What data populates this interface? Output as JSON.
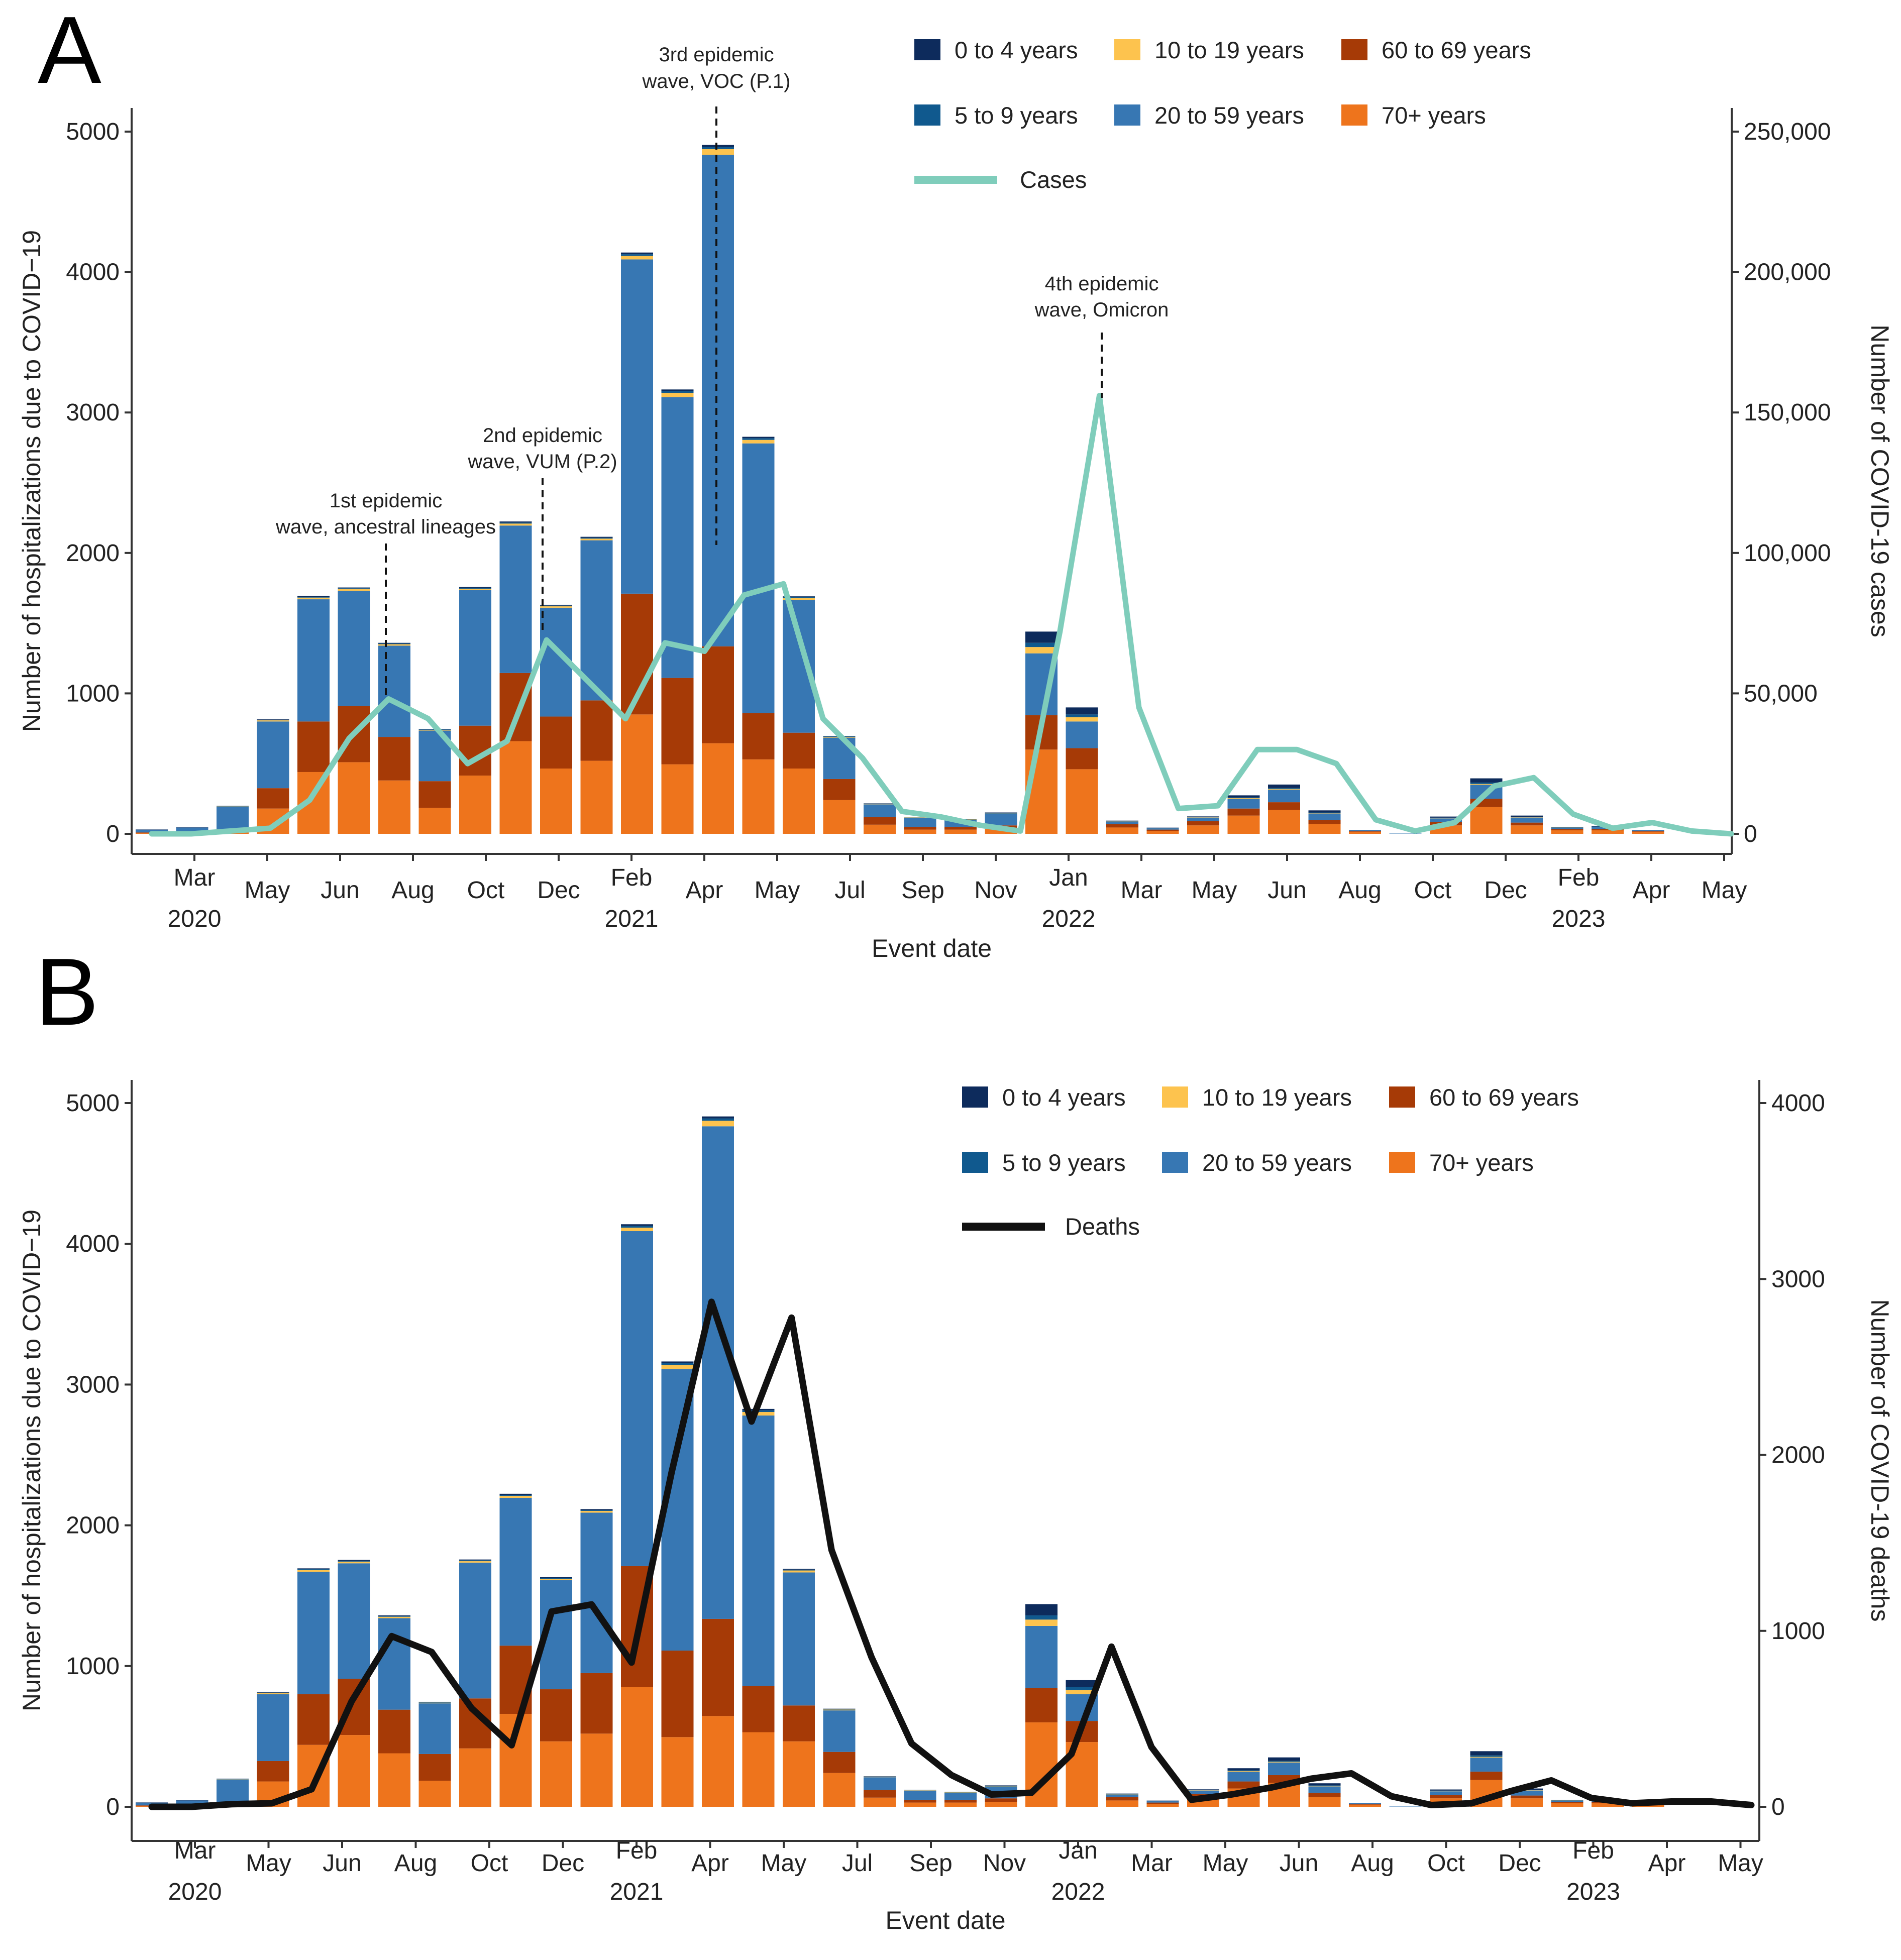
{
  "chart_data": [
    {
      "panel_label": "A",
      "type": "bar",
      "stacked": true,
      "xlabel": "Event date",
      "ylabel": "Number of hospitalizations due to COVID−19",
      "y2label": "Number of COVID-19 cases",
      "ylim": [
        0,
        5000
      ],
      "y2lim": [
        0,
        250000
      ],
      "y_ticks": [
        "0",
        "1000",
        "2000",
        "3000",
        "4000",
        "5000"
      ],
      "y2_ticks": [
        "0",
        "50,000",
        "100,000",
        "150,000",
        "200,000",
        "250,000"
      ],
      "x_tick_labels": [
        {
          "month": "Mar",
          "year": "2020"
        },
        {
          "month": "May",
          "year": ""
        },
        {
          "month": "Jun",
          "year": ""
        },
        {
          "month": "Aug",
          "year": ""
        },
        {
          "month": "Oct",
          "year": ""
        },
        {
          "month": "Dec",
          "year": ""
        },
        {
          "month": "Feb",
          "year": "2021"
        },
        {
          "month": "Apr",
          "year": ""
        },
        {
          "month": "May",
          "year": ""
        },
        {
          "month": "Jul",
          "year": ""
        },
        {
          "month": "Sep",
          "year": ""
        },
        {
          "month": "Nov",
          "year": ""
        },
        {
          "month": "Jan",
          "year": "2022"
        },
        {
          "month": "Mar",
          "year": ""
        },
        {
          "month": "May",
          "year": ""
        },
        {
          "month": "Jun",
          "year": ""
        },
        {
          "month": "Aug",
          "year": ""
        },
        {
          "month": "Oct",
          "year": ""
        },
        {
          "month": "Dec",
          "year": ""
        },
        {
          "month": "Feb",
          "year": "2023"
        },
        {
          "month": "Apr",
          "year": ""
        },
        {
          "month": "May",
          "year": ""
        }
      ],
      "legend": [
        {
          "label": "0 to 4 years",
          "color": "#0d2b5c"
        },
        {
          "label": "10 to 19 years",
          "color": "#fdc34e"
        },
        {
          "label": "60 to 69 years",
          "color": "#a63a06"
        },
        {
          "label": "5 to 9 years",
          "color": "#10598e"
        },
        {
          "label": "20 to 59 years",
          "color": "#3777b3"
        },
        {
          "label": "70+ years",
          "color": "#ee741c"
        },
        {
          "label": "Cases",
          "color": "#7fcdbb",
          "kind": "line"
        }
      ],
      "series": [
        {
          "name": "70+ years",
          "color": "#ee741c",
          "values": [
            5,
            8,
            20,
            180,
            440,
            510,
            380,
            185,
            415,
            660,
            465,
            520,
            850,
            495,
            645,
            530,
            465,
            240,
            65,
            30,
            30,
            35,
            600,
            460,
            45,
            20,
            60,
            130,
            170,
            70,
            15,
            0,
            60,
            190,
            60,
            25,
            25,
            15
          ]
        },
        {
          "name": "60 to 69 years",
          "color": "#a63a06",
          "values": [
            5,
            7,
            15,
            145,
            360,
            400,
            310,
            190,
            355,
            485,
            370,
            430,
            860,
            615,
            690,
            330,
            255,
            150,
            55,
            20,
            20,
            25,
            245,
            150,
            25,
            10,
            30,
            50,
            55,
            30,
            5,
            0,
            25,
            60,
            20,
            10,
            10,
            5
          ]
        },
        {
          "name": "20 to 59 years",
          "color": "#3777b3",
          "values": [
            20,
            30,
            160,
            475,
            870,
            820,
            650,
            360,
            965,
            1050,
            775,
            1140,
            2380,
            2000,
            3500,
            1920,
            945,
            295,
            90,
            65,
            50,
            80,
            440,
            190,
            15,
            10,
            25,
            70,
            90,
            45,
            5,
            2,
            25,
            100,
            35,
            10,
            15,
            5
          ]
        },
        {
          "name": "10 to 19 years",
          "color": "#fdc34e",
          "values": [
            0,
            0,
            2,
            8,
            12,
            12,
            10,
            5,
            10,
            14,
            10,
            12,
            25,
            30,
            40,
            25,
            14,
            6,
            3,
            2,
            2,
            4,
            45,
            30,
            2,
            1,
            2,
            4,
            5,
            3,
            0,
            0,
            2,
            5,
            2,
            1,
            1,
            0
          ]
        },
        {
          "name": "5 to 9 years",
          "color": "#10598e",
          "values": [
            0,
            0,
            1,
            3,
            6,
            6,
            5,
            3,
            6,
            7,
            5,
            6,
            12,
            12,
            16,
            12,
            6,
            3,
            2,
            2,
            2,
            3,
            30,
            20,
            2,
            1,
            2,
            5,
            6,
            4,
            0,
            0,
            3,
            10,
            3,
            1,
            1,
            0
          ]
        },
        {
          "name": "0 to 4 years",
          "color": "#0d2b5c",
          "values": [
            1,
            1,
            2,
            4,
            6,
            6,
            5,
            3,
            6,
            8,
            6,
            7,
            12,
            12,
            14,
            10,
            6,
            3,
            2,
            2,
            3,
            5,
            80,
            50,
            5,
            2,
            5,
            15,
            25,
            15,
            2,
            0,
            8,
            30,
            10,
            3,
            4,
            2
          ]
        },
        {
          "name": "Cases",
          "type": "line",
          "axis": "right",
          "color": "#7fcdbb",
          "values": [
            0,
            0,
            1000,
            2000,
            12000,
            34000,
            48000,
            41000,
            25000,
            33000,
            69000,
            55000,
            41000,
            68000,
            65000,
            85000,
            89000,
            41000,
            27000,
            8000,
            6000,
            3000,
            1000,
            72000,
            156000,
            45000,
            9000,
            10000,
            30000,
            30000,
            25000,
            5000,
            1000,
            4000,
            17000,
            20000,
            7000,
            2000,
            4000,
            1000,
            0
          ]
        }
      ],
      "annotations": [
        {
          "lines": [
            "1st epidemic",
            "wave, ancestral lineages"
          ]
        },
        {
          "lines": [
            "2nd epidemic",
            "wave, VUM (P.2)"
          ]
        },
        {
          "lines": [
            "3rd epidemic",
            "wave, VOC (P.1)"
          ]
        },
        {
          "lines": [
            "4th epidemic",
            "wave, Omicron"
          ]
        }
      ]
    },
    {
      "panel_label": "B",
      "type": "bar",
      "stacked": true,
      "xlabel": "Event date",
      "ylabel": "Number of hospitalizations due to COVID−19",
      "y2label": "Number of COVID-19 deaths",
      "ylim": [
        0,
        5000
      ],
      "y2lim": [
        0,
        4000
      ],
      "y_ticks": [
        "0",
        "1000",
        "2000",
        "3000",
        "4000",
        "5000"
      ],
      "y2_ticks": [
        "0",
        "1000",
        "2000",
        "3000",
        "4000"
      ],
      "x_tick_labels": [
        {
          "month": "Mar",
          "year": "2020"
        },
        {
          "month": "May",
          "year": ""
        },
        {
          "month": "Jun",
          "year": ""
        },
        {
          "month": "Aug",
          "year": ""
        },
        {
          "month": "Oct",
          "year": ""
        },
        {
          "month": "Dec",
          "year": ""
        },
        {
          "month": "Feb",
          "year": "2021"
        },
        {
          "month": "Apr",
          "year": ""
        },
        {
          "month": "May",
          "year": ""
        },
        {
          "month": "Jul",
          "year": ""
        },
        {
          "month": "Sep",
          "year": ""
        },
        {
          "month": "Nov",
          "year": ""
        },
        {
          "month": "Jan",
          "year": "2022"
        },
        {
          "month": "Mar",
          "year": ""
        },
        {
          "month": "May",
          "year": ""
        },
        {
          "month": "Jun",
          "year": ""
        },
        {
          "month": "Aug",
          "year": ""
        },
        {
          "month": "Oct",
          "year": ""
        },
        {
          "month": "Dec",
          "year": ""
        },
        {
          "month": "Feb",
          "year": "2023"
        },
        {
          "month": "Apr",
          "year": ""
        },
        {
          "month": "May",
          "year": ""
        }
      ],
      "legend": [
        {
          "label": "0 to 4 years",
          "color": "#0d2b5c"
        },
        {
          "label": "10 to 19 years",
          "color": "#fdc34e"
        },
        {
          "label": "60 to 69 years",
          "color": "#a63a06"
        },
        {
          "label": "5 to 9 years",
          "color": "#10598e"
        },
        {
          "label": "20 to 59 years",
          "color": "#3777b3"
        },
        {
          "label": "70+ years",
          "color": "#ee741c"
        },
        {
          "label": "Deaths",
          "color": "#111111",
          "kind": "line"
        }
      ],
      "series": [
        {
          "name": "70+ years",
          "color": "#ee741c",
          "values": [
            5,
            8,
            20,
            180,
            440,
            510,
            380,
            185,
            415,
            660,
            465,
            520,
            850,
            495,
            645,
            530,
            465,
            240,
            65,
            30,
            30,
            35,
            600,
            460,
            45,
            20,
            60,
            130,
            170,
            70,
            15,
            0,
            60,
            190,
            60,
            25,
            25,
            15
          ]
        },
        {
          "name": "60 to 69 years",
          "color": "#a63a06",
          "values": [
            5,
            7,
            15,
            145,
            360,
            400,
            310,
            190,
            355,
            485,
            370,
            430,
            860,
            615,
            690,
            330,
            255,
            150,
            55,
            20,
            20,
            25,
            245,
            150,
            25,
            10,
            30,
            50,
            55,
            30,
            5,
            0,
            25,
            60,
            20,
            10,
            10,
            5
          ]
        },
        {
          "name": "20 to 59 years",
          "color": "#3777b3",
          "values": [
            20,
            30,
            160,
            475,
            870,
            820,
            650,
            360,
            965,
            1050,
            775,
            1140,
            2380,
            2000,
            3500,
            1920,
            945,
            295,
            90,
            65,
            50,
            80,
            440,
            190,
            15,
            10,
            25,
            70,
            90,
            45,
            5,
            2,
            25,
            100,
            35,
            10,
            15,
            5
          ]
        },
        {
          "name": "10 to 19 years",
          "color": "#fdc34e",
          "values": [
            0,
            0,
            2,
            8,
            12,
            12,
            10,
            5,
            10,
            14,
            10,
            12,
            25,
            30,
            40,
            25,
            14,
            6,
            3,
            2,
            2,
            4,
            45,
            30,
            2,
            1,
            2,
            4,
            5,
            3,
            0,
            0,
            2,
            5,
            2,
            1,
            1,
            0
          ]
        },
        {
          "name": "5 to 9 years",
          "color": "#10598e",
          "values": [
            0,
            0,
            1,
            3,
            6,
            6,
            5,
            3,
            6,
            7,
            5,
            6,
            12,
            12,
            16,
            12,
            6,
            3,
            2,
            2,
            2,
            3,
            30,
            20,
            2,
            1,
            2,
            5,
            6,
            4,
            0,
            0,
            3,
            10,
            3,
            1,
            1,
            0
          ]
        },
        {
          "name": "0 to 4 years",
          "color": "#0d2b5c",
          "values": [
            1,
            1,
            2,
            4,
            6,
            6,
            5,
            3,
            6,
            8,
            6,
            7,
            12,
            12,
            14,
            10,
            6,
            3,
            2,
            2,
            3,
            5,
            80,
            50,
            5,
            2,
            5,
            15,
            25,
            15,
            2,
            0,
            8,
            30,
            10,
            3,
            4,
            2
          ]
        },
        {
          "name": "Deaths",
          "type": "line",
          "axis": "right",
          "color": "#111111",
          "values": [
            0,
            0,
            15,
            20,
            100,
            600,
            970,
            880,
            560,
            350,
            1110,
            1150,
            820,
            1900,
            2870,
            2190,
            2780,
            1460,
            850,
            360,
            180,
            70,
            80,
            300,
            910,
            340,
            40,
            70,
            110,
            160,
            190,
            60,
            10,
            20,
            90,
            150,
            50,
            20,
            30,
            30,
            10
          ]
        }
      ],
      "annotations": []
    }
  ]
}
